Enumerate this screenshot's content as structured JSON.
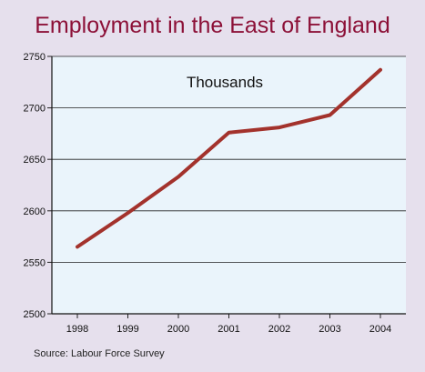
{
  "chart_data": {
    "type": "line",
    "title": "Employment in the East of England",
    "unit_label": "Thousands",
    "source": "Source: Labour Force Survey",
    "x": [
      "1998",
      "1999",
      "2000",
      "2001",
      "2002",
      "2003",
      "2004"
    ],
    "series": [
      {
        "values": [
          2565,
          2598,
          2633,
          2676,
          2681,
          2693,
          2737
        ],
        "color": "#a3322c"
      }
    ],
    "ylim": [
      2500,
      2750
    ],
    "yticks": [
      "2500",
      "2550",
      "2600",
      "2650",
      "2700",
      "2750"
    ],
    "grid": true,
    "colors": {
      "background": "#e6e0ed",
      "plot_area": "#eaf4fb",
      "title": "#8c1037",
      "line": "#a3322c"
    }
  }
}
